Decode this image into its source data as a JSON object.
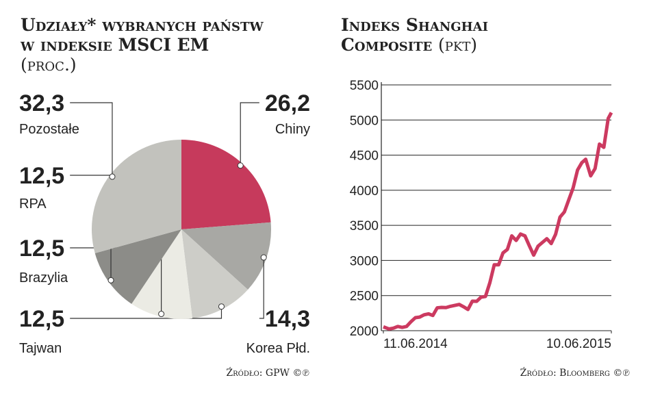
{
  "chart_data": [
    {
      "type": "pie",
      "title": "Udziały* wybranych państw w indeksie MSCI EM",
      "unit": "(proc.)",
      "categories": [
        "Chiny",
        "Korea Płd.",
        "Tajwan",
        "Brazylia",
        "RPA",
        "Pozostałe"
      ],
      "values": [
        26.2,
        14.3,
        12.5,
        12.5,
        12.5,
        32.3
      ],
      "value_labels": [
        "26,2",
        "14,3",
        "12,5",
        "12,5",
        "12,5",
        "32,3"
      ],
      "colors": [
        "#c63a5c",
        "#a8a8a4",
        "#cdcdc8",
        "#ebebe4",
        "#8c8c88",
        "#c2c2bd"
      ],
      "source": "Źródło: GPW ©℗"
    },
    {
      "type": "line",
      "title": "Indeks Shanghai Composite",
      "unit": "(pkt)",
      "color": "#cc3a60",
      "x": [
        "2014-06-11",
        "2014-06-20",
        "2014-06-27",
        "2014-07-04",
        "2014-07-11",
        "2014-07-18",
        "2014-07-25",
        "2014-08-01",
        "2014-08-08",
        "2014-08-15",
        "2014-08-22",
        "2014-08-29",
        "2014-09-05",
        "2014-09-12",
        "2014-09-19",
        "2014-09-26",
        "2014-10-10",
        "2014-10-17",
        "2014-10-24",
        "2014-10-31",
        "2014-11-07",
        "2014-11-14",
        "2014-11-21",
        "2014-11-28",
        "2014-12-05",
        "2014-12-12",
        "2014-12-19",
        "2014-12-26",
        "2015-01-02",
        "2015-01-09",
        "2015-01-16",
        "2015-01-23",
        "2015-01-30",
        "2015-02-06",
        "2015-02-13",
        "2015-02-27",
        "2015-03-06",
        "2015-03-13",
        "2015-03-20",
        "2015-03-27",
        "2015-04-03",
        "2015-04-10",
        "2015-04-17",
        "2015-04-24",
        "2015-04-30",
        "2015-05-08",
        "2015-05-15",
        "2015-05-22",
        "2015-05-29",
        "2015-06-05",
        "2015-06-10"
      ],
      "values": [
        2055,
        2025,
        2036,
        2060,
        2047,
        2060,
        2127,
        2185,
        2194,
        2226,
        2240,
        2217,
        2326,
        2331,
        2329,
        2347,
        2374,
        2341,
        2302,
        2420,
        2418,
        2478,
        2487,
        2683,
        2938,
        2938,
        3108,
        3157,
        3350,
        3285,
        3376,
        3351,
        3210,
        3076,
        3204,
        3310,
        3241,
        3373,
        3617,
        3691,
        3863,
        4034,
        4287,
        4394,
        4441,
        4205,
        4308,
        4657,
        4611,
        5023,
        5106
      ],
      "xlim": [
        "2014-06-11",
        "2015-06-10"
      ],
      "xticks": [
        {
          "value": "2014-06-11",
          "label": "11.06.2014"
        },
        {
          "value": "2015-06-10",
          "label": "10.06.2015"
        }
      ],
      "ylim": [
        2000,
        5500
      ],
      "yticks": [
        2000,
        2500,
        3000,
        3500,
        4000,
        4500,
        5000,
        5500
      ],
      "grid": true,
      "source": "Źródło: Bloomberg ©℗"
    }
  ]
}
